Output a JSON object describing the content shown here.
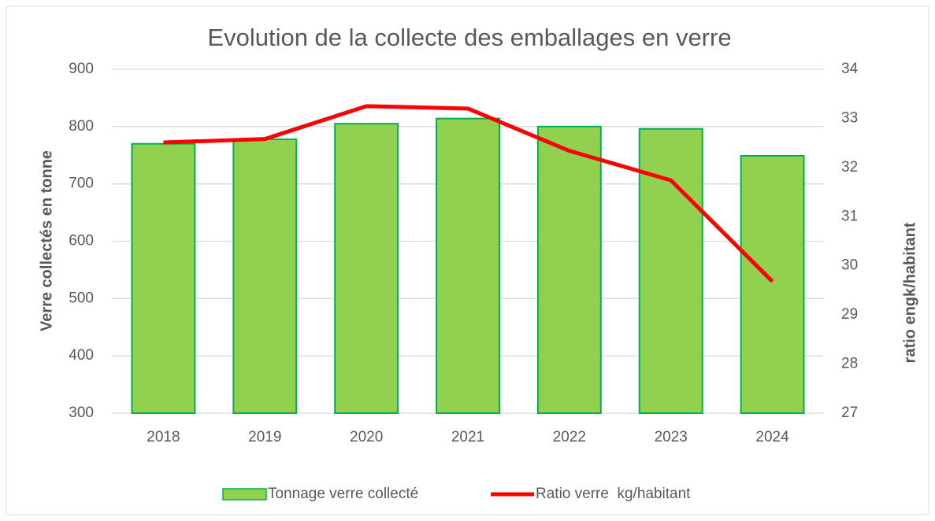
{
  "chart_data": {
    "type": "bar",
    "title": "Evolution de la collecte des emballages en verre",
    "categories": [
      "2018",
      "2019",
      "2020",
      "2021",
      "2022",
      "2023",
      "2024"
    ],
    "series": [
      {
        "name": "Tonnage verre collecté",
        "type": "bar",
        "color": "#92d050",
        "edge_color": "#00b050",
        "values": [
          770,
          778,
          805,
          814,
          800,
          796,
          749
        ]
      },
      {
        "name": "Ratio verre  kg/habitant",
        "type": "line",
        "axis": "y2",
        "color": "#ff0000",
        "values": [
          32.51,
          32.58,
          33.25,
          33.2,
          32.34,
          31.74,
          29.68
        ]
      }
    ],
    "ylabel": "Verre collectés en tonne",
    "y2label": "ratio engk/habitant",
    "ylim": [
      300,
      900
    ],
    "yticks": [
      300,
      400,
      500,
      600,
      700,
      800,
      900
    ],
    "y2lim": [
      27,
      34
    ],
    "y2ticks": [
      27,
      28,
      29,
      30,
      31,
      32,
      33,
      34
    ],
    "grid": true,
    "legend": "bottom"
  }
}
